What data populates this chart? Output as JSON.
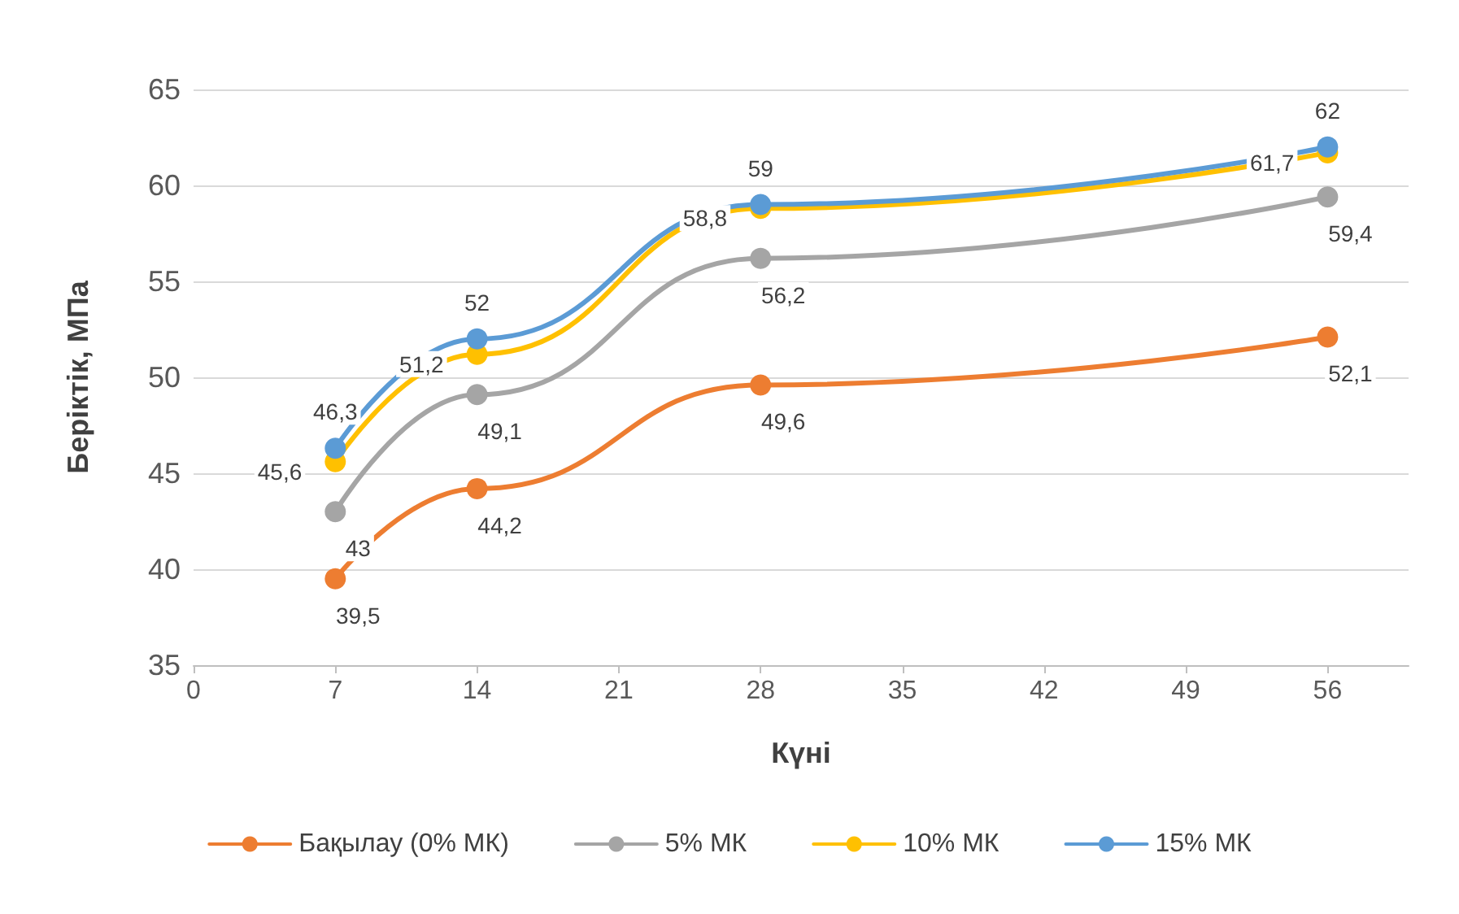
{
  "chart_data": {
    "type": "line",
    "xlabel": "Күні",
    "ylabel": "Беріктік, МПа",
    "x": [
      7,
      14,
      28,
      56
    ],
    "series": [
      {
        "name": "Бақылау (0% МК)",
        "color": "#ed7d31",
        "values": [
          39.5,
          44.2,
          49.6,
          52.1
        ],
        "value_labels": [
          "39,5",
          "44,2",
          "49,6",
          "52,1"
        ]
      },
      {
        "name": "5% МК",
        "color": "#a5a5a5",
        "values": [
          43,
          49.1,
          56.2,
          59.4
        ],
        "value_labels": [
          "43",
          "49,1",
          "56,2",
          "59,4"
        ]
      },
      {
        "name": "10% МК",
        "color": "#ffc000",
        "values": [
          45.6,
          51.2,
          58.8,
          61.7
        ],
        "value_labels": [
          "45,6",
          "51,2",
          "58,8",
          "61,7"
        ]
      },
      {
        "name": "15% МК",
        "color": "#5b9bd5",
        "values": [
          46.3,
          52,
          59,
          62
        ],
        "value_labels": [
          "46,3",
          "52",
          "59",
          "62"
        ]
      }
    ],
    "xlim": [
      0,
      60
    ],
    "xticks": [
      0,
      7,
      14,
      21,
      28,
      35,
      42,
      49,
      56
    ],
    "ylim": [
      35,
      65
    ],
    "yticks": [
      35,
      40,
      45,
      50,
      55,
      60,
      65
    ],
    "grid": "y",
    "legend": "bottom",
    "marker": "circle",
    "line_style": "solid"
  }
}
